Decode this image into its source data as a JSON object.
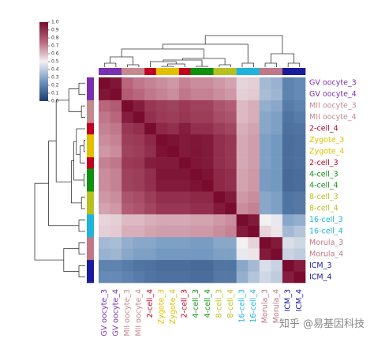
{
  "chart_data": {
    "type": "heatmap",
    "rows": [
      "GV oocyte_3",
      "GV oocyte_4",
      "MII oocyte_3",
      "MII oocyte_4",
      "2-cell_4",
      "Zygote_3",
      "Zygote_4",
      "2-cell_3",
      "4-cell_3",
      "4-cell_4",
      "8-cell_3",
      "8-cell_4",
      "16-cell_3",
      "16-cell_4",
      "Morula_3",
      "Morula_4",
      "ICM_3",
      "ICM_4"
    ],
    "columns": [
      "GV oocyte_3",
      "GV oocyte_4",
      "MII oocyte_3",
      "MII oocyte_4",
      "2-cell_4",
      "Zygote_3",
      "Zygote_4",
      "2-cell_3",
      "4-cell_3",
      "4-cell_4",
      "8-cell_3",
      "8-cell_4",
      "16-cell_3",
      "16-cell_4",
      "Morula_3",
      "Morula_4",
      "ICM_3",
      "ICM_4"
    ],
    "category_colors": [
      "#7a2fb0",
      "#7a2fb0",
      "#c58a8f",
      "#c58a8f",
      "#c00020",
      "#e0c000",
      "#e0c000",
      "#c00020",
      "#109010",
      "#109010",
      "#b8c020",
      "#b8c020",
      "#20b4dc",
      "#20b4dc",
      "#c07888",
      "#c07888",
      "#1a1a9c",
      "#1a1a9c"
    ],
    "values": [
      [
        1,
        0.97,
        0.75,
        0.72,
        0.7,
        0.68,
        0.66,
        0.7,
        0.68,
        0.68,
        0.66,
        0.64,
        0.55,
        0.56,
        0.35,
        0.33,
        0.2,
        0.22
      ],
      [
        0.97,
        1,
        0.78,
        0.75,
        0.72,
        0.7,
        0.68,
        0.72,
        0.7,
        0.7,
        0.68,
        0.66,
        0.56,
        0.57,
        0.36,
        0.34,
        0.2,
        0.22
      ],
      [
        0.75,
        0.78,
        1,
        0.95,
        0.88,
        0.86,
        0.85,
        0.87,
        0.85,
        0.85,
        0.8,
        0.78,
        0.6,
        0.62,
        0.32,
        0.3,
        0.18,
        0.2
      ],
      [
        0.72,
        0.75,
        0.95,
        1,
        0.9,
        0.87,
        0.86,
        0.88,
        0.86,
        0.86,
        0.82,
        0.8,
        0.6,
        0.62,
        0.3,
        0.28,
        0.16,
        0.18
      ],
      [
        0.7,
        0.72,
        0.88,
        0.9,
        1,
        0.92,
        0.9,
        0.95,
        0.9,
        0.9,
        0.86,
        0.84,
        0.62,
        0.64,
        0.3,
        0.28,
        0.15,
        0.16
      ],
      [
        0.68,
        0.7,
        0.86,
        0.87,
        0.92,
        1,
        0.98,
        0.96,
        0.97,
        0.96,
        0.9,
        0.88,
        0.63,
        0.65,
        0.28,
        0.26,
        0.14,
        0.15
      ],
      [
        0.66,
        0.68,
        0.85,
        0.86,
        0.9,
        0.98,
        1,
        0.96,
        0.97,
        0.96,
        0.9,
        0.88,
        0.63,
        0.65,
        0.28,
        0.26,
        0.14,
        0.15
      ],
      [
        0.7,
        0.72,
        0.87,
        0.88,
        0.95,
        0.96,
        0.96,
        1,
        0.97,
        0.96,
        0.9,
        0.88,
        0.63,
        0.65,
        0.28,
        0.26,
        0.14,
        0.15
      ],
      [
        0.68,
        0.7,
        0.85,
        0.86,
        0.9,
        0.97,
        0.97,
        0.97,
        1,
        0.98,
        0.92,
        0.9,
        0.64,
        0.66,
        0.27,
        0.26,
        0.13,
        0.14
      ],
      [
        0.68,
        0.7,
        0.85,
        0.86,
        0.9,
        0.96,
        0.96,
        0.96,
        0.98,
        1,
        0.92,
        0.9,
        0.64,
        0.66,
        0.27,
        0.26,
        0.13,
        0.14
      ],
      [
        0.66,
        0.68,
        0.8,
        0.82,
        0.86,
        0.9,
        0.9,
        0.9,
        0.92,
        0.92,
        1,
        0.96,
        0.66,
        0.68,
        0.3,
        0.28,
        0.16,
        0.17
      ],
      [
        0.64,
        0.66,
        0.78,
        0.8,
        0.84,
        0.88,
        0.88,
        0.88,
        0.9,
        0.9,
        0.96,
        1,
        0.68,
        0.7,
        0.3,
        0.28,
        0.16,
        0.17
      ],
      [
        0.55,
        0.56,
        0.6,
        0.6,
        0.62,
        0.63,
        0.63,
        0.63,
        0.64,
        0.64,
        0.66,
        0.68,
        1,
        0.96,
        0.5,
        0.48,
        0.3,
        0.32
      ],
      [
        0.56,
        0.57,
        0.62,
        0.62,
        0.64,
        0.65,
        0.65,
        0.65,
        0.66,
        0.66,
        0.68,
        0.7,
        0.96,
        1,
        0.55,
        0.52,
        0.35,
        0.38
      ],
      [
        0.35,
        0.36,
        0.32,
        0.3,
        0.3,
        0.28,
        0.28,
        0.28,
        0.27,
        0.27,
        0.3,
        0.3,
        0.5,
        0.55,
        1,
        0.96,
        0.45,
        0.43
      ],
      [
        0.33,
        0.34,
        0.3,
        0.28,
        0.28,
        0.26,
        0.26,
        0.26,
        0.26,
        0.26,
        0.28,
        0.28,
        0.48,
        0.52,
        0.96,
        1,
        0.42,
        0.4
      ],
      [
        0.2,
        0.2,
        0.18,
        0.16,
        0.15,
        0.14,
        0.14,
        0.14,
        0.13,
        0.13,
        0.16,
        0.16,
        0.3,
        0.35,
        0.45,
        0.42,
        1,
        0.95
      ],
      [
        0.22,
        0.22,
        0.2,
        0.18,
        0.16,
        0.15,
        0.15,
        0.15,
        0.14,
        0.14,
        0.17,
        0.17,
        0.32,
        0.38,
        0.43,
        0.4,
        0.95,
        1
      ]
    ],
    "colormap": [
      "#1d3b6f",
      "#6f95bf",
      "#f3f0f2",
      "#b9667d",
      "#780b2e"
    ],
    "clim": [
      0,
      1
    ],
    "cticks": [
      {
        "value": 0,
        "label": "0.0"
      },
      0.1,
      0.2,
      0.3,
      0.4,
      0.5,
      0.6,
      0.7,
      0.8,
      0.9,
      {
        "value": 1,
        "label": "1.0"
      }
    ]
  },
  "watermark": "知乎 @易基因科技"
}
